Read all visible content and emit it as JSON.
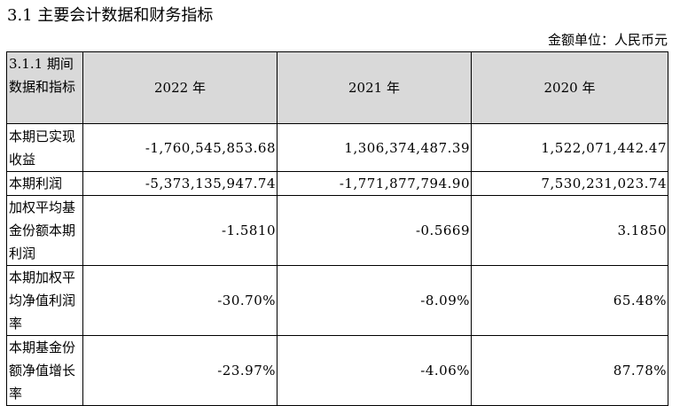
{
  "section_title": "3.1 主要会计数据和财务指标",
  "unit_label": "金额单位：人民币元",
  "table": {
    "corner_header": "3.1.1 期间数据和指标",
    "year_headers": [
      "2022 年",
      "2021 年",
      "2020 年"
    ],
    "rows": [
      {
        "label": "本期已实现收益",
        "values": [
          "-1,760,545,853.68",
          "1,306,374,487.39",
          "1,522,071,442.47"
        ]
      },
      {
        "label": "本期利润",
        "values": [
          "-5,373,135,947.74",
          "-1,771,877,794.90",
          "7,530,231,023.74"
        ]
      },
      {
        "label": "加权平均基金份额本期利润",
        "values": [
          "-1.5810",
          "-0.5669",
          "3.1850"
        ]
      },
      {
        "label": "本期加权平均净值利润率",
        "values": [
          "-30.70%",
          "-8.09%",
          "65.48%"
        ]
      },
      {
        "label": "本期基金份额净值增长率",
        "values": [
          "-23.97%",
          "-4.06%",
          "87.78%"
        ]
      }
    ]
  }
}
